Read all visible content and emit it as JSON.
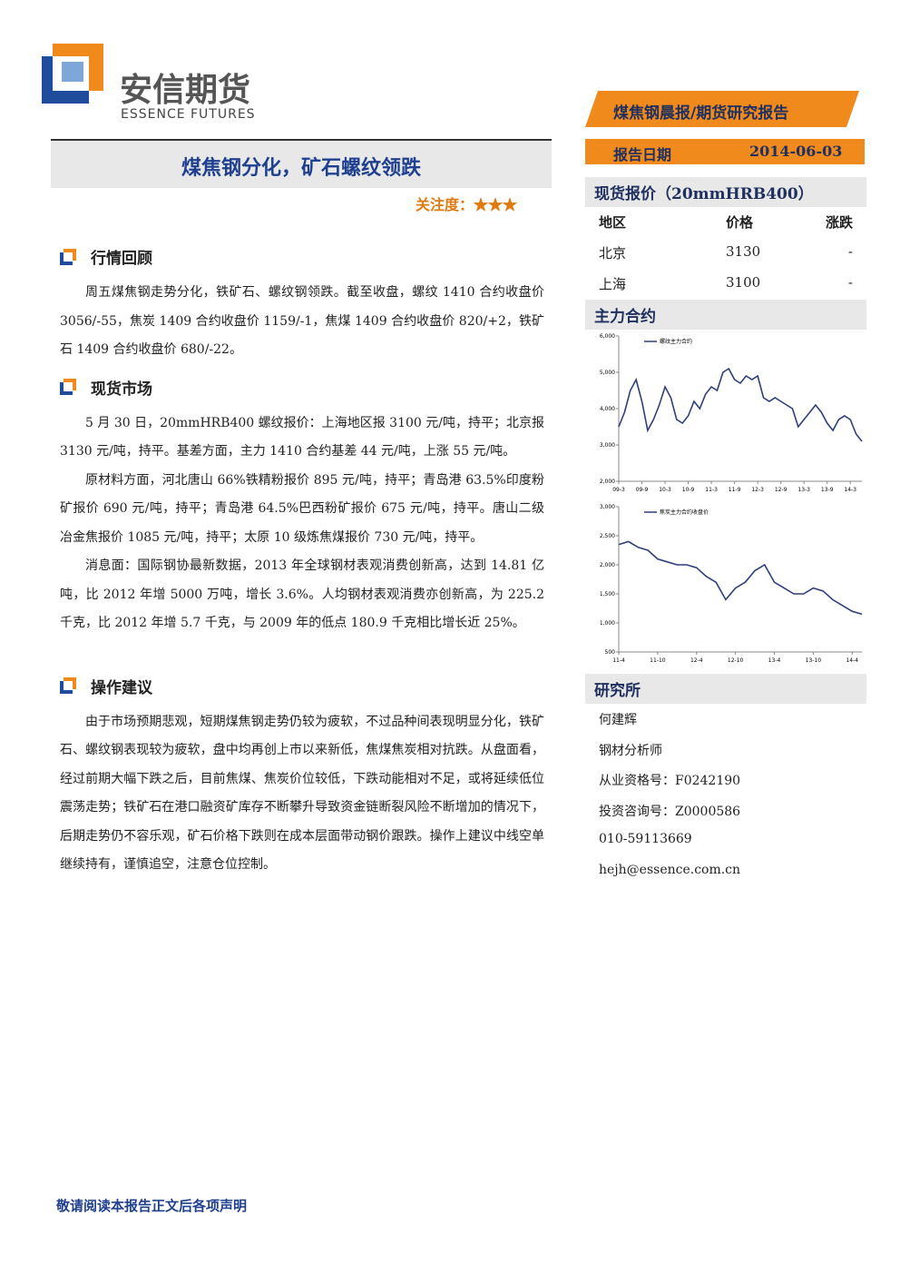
{
  "header": {
    "logo_cn": "安信期货",
    "logo_en": "ESSENCE FUTURES",
    "banner": "煤焦钢晨报/期货研究报告",
    "date_label": "报告日期",
    "date": "2014-06-03"
  },
  "title": "煤焦钢分化，矿石螺纹领跌",
  "attention": "关注度：★★★",
  "sections": [
    {
      "heading": "行情回顾",
      "paragraphs": [
        "周五煤焦钢走势分化，铁矿石、螺纹钢领跌。截至收盘，螺纹 1410 合约收盘价 3056/-55，焦炭 1409 合约收盘价 1159/-1，焦煤 1409 合约收盘价 820/+2，铁矿石 1409 合约收盘价 680/-22。"
      ]
    },
    {
      "heading": "现货市场",
      "paragraphs": [
        "5 月 30 日，20mmHRB400 螺纹报价：上海地区报 3100 元/吨，持平；北京报 3130 元/吨，持平。基差方面，主力 1410 合约基差 44 元/吨，上涨 55 元/吨。",
        "原材料方面，河北唐山 66%铁精粉报价 895 元/吨，持平；青岛港 63.5%印度粉矿报价 690 元/吨，持平；青岛港 64.5%巴西粉矿报价 675 元/吨，持平。唐山二级冶金焦报价 1085 元/吨，持平；太原 10 级炼焦煤报价 730 元/吨，持平。",
        "消息面：国际钢协最新数据，2013 年全球钢材表观消费创新高，达到 14.81 亿吨，比 2012 年增 5000 万吨，增长 3.6%。人均钢材表观消费亦创新高，为 225.2 千克，比 2012 年增 5.7 千克，与 2009 年的低点 180.9 千克相比增长近 25%。"
      ]
    },
    {
      "heading": "操作建议",
      "paragraphs": [
        "由于市场预期悲观，短期煤焦钢走势仍较为疲软，不过品种间表现明显分化，铁矿石、螺纹钢表现较为疲软，盘中均再创上市以来新低，焦煤焦炭相对抗跌。从盘面看，经过前期大幅下跌之后，目前焦煤、焦炭价位较低，下跌动能相对不足，或将延续低位震荡走势；铁矿石在港口融资矿库存不断攀升导致资金链断裂风险不断增加的情况下，后期走势仍不容乐观，矿石价格下跌则在成本层面带动钢价跟跌。操作上建议中线空单继续持有，谨慎追空，注意仓位控制。"
      ]
    }
  ],
  "spot": {
    "heading": "现货报价（20mmHRB400）",
    "columns": [
      "地区",
      "价格",
      "涨跌"
    ],
    "rows": [
      [
        "北京",
        "3130",
        "-"
      ],
      [
        "上海",
        "3100",
        "-"
      ]
    ]
  },
  "main_heading": "主力合约",
  "charts": [
    {
      "type": "line",
      "series": [
        {
          "name": "螺纹主力合约",
          "color": "#2e3f7c",
          "values": [
            3500,
            3900,
            4500,
            4800,
            4200,
            3400,
            3700,
            4100,
            4600,
            4300,
            3700,
            3600,
            3800,
            4200,
            4000,
            4400,
            4600,
            4500,
            5000,
            5100,
            4800,
            4700,
            4900,
            4800,
            4900,
            4300,
            4200,
            4300,
            4200,
            4100,
            4000,
            3500,
            3700,
            3900,
            4100,
            3900,
            3600,
            3400,
            3700,
            3800,
            3700,
            3300,
            3100
          ]
        }
      ],
      "categories": [
        "09-3",
        null,
        null,
        null,
        "09-9",
        null,
        null,
        null,
        "10-3",
        null,
        null,
        null,
        "10-9",
        null,
        null,
        null,
        "11-3",
        null,
        null,
        null,
        "11-9",
        null,
        null,
        null,
        "12-3",
        null,
        null,
        null,
        "12-9",
        null,
        null,
        null,
        "13-3",
        null,
        null,
        null,
        "13-9",
        null,
        null,
        null,
        "14-3",
        null,
        null
      ],
      "ylim": [
        2000,
        6000
      ],
      "yticks": [
        {
          "value": 2000,
          "label": "2,000"
        },
        {
          "value": 3000,
          "label": "3,000"
        },
        {
          "value": 4000,
          "label": "4,000"
        },
        {
          "value": 5000,
          "label": "5,000"
        },
        {
          "value": 6000,
          "label": "6,000"
        }
      ]
    },
    {
      "type": "line",
      "series": [
        {
          "name": "焦炭主力合约收盘价",
          "color": "#2e3f7c",
          "values": [
            2350,
            2400,
            2300,
            2250,
            2100,
            2050,
            2000,
            2000,
            1950,
            1800,
            1700,
            1400,
            1600,
            1700,
            1900,
            2000,
            1700,
            1600,
            1500,
            1500,
            1600,
            1550,
            1400,
            1300,
            1200,
            1150
          ]
        }
      ],
      "categories": [
        "11-4",
        null,
        null,
        null,
        "11-10",
        null,
        null,
        null,
        "12-4",
        null,
        null,
        null,
        "12-10",
        null,
        null,
        null,
        "13-4",
        null,
        null,
        null,
        "13-10",
        null,
        null,
        null,
        "14-4",
        null
      ],
      "ylim": [
        500,
        3000
      ],
      "yticks": [
        500,
        {
          "value": 1000,
          "label": "1,000"
        },
        {
          "value": 1500,
          "label": "1,500"
        },
        {
          "value": 2000,
          "label": "2,000"
        },
        {
          "value": 2500,
          "label": "2,500"
        },
        {
          "value": 3000,
          "label": "3,000"
        }
      ]
    }
  ],
  "institute": {
    "heading": "研究所",
    "lines": [
      "何建辉",
      "钢材分析师",
      "从业资格号：F0242190",
      "投资咨询号：Z0000586",
      "010-59113669",
      "hejh@essence.com.cn"
    ]
  },
  "footer": "敬请阅读本报告正文后各项声明"
}
